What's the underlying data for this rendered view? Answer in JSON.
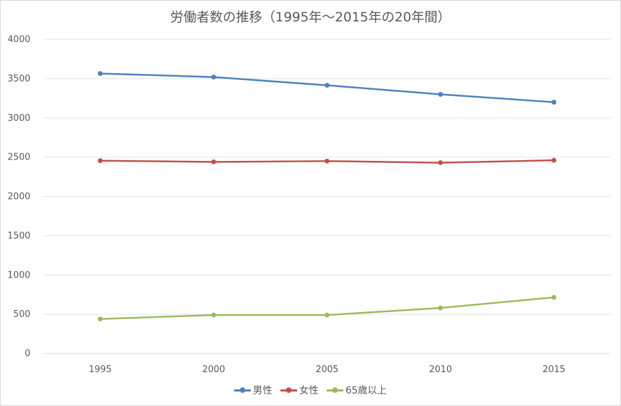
{
  "chart_data": {
    "type": "line",
    "title": "労働者数の推移（1995年～2015年の20年間）",
    "categories": [
      "1995",
      "2000",
      "2005",
      "2010",
      "2015"
    ],
    "ylim": [
      0,
      4000
    ],
    "yticks": [
      0,
      500,
      1000,
      1500,
      2000,
      2500,
      3000,
      3500,
      4000
    ],
    "grid": true,
    "legend_position": "bottom",
    "series": [
      {
        "name": "男性",
        "color": "#4f81bd",
        "values": [
          3565,
          3520,
          3415,
          3300,
          3200
        ]
      },
      {
        "name": "女性",
        "color": "#c0504d",
        "values": [
          2455,
          2440,
          2450,
          2430,
          2460
        ]
      },
      {
        "name": "65歳以上",
        "color": "#9bbb59",
        "values": [
          440,
          490,
          490,
          580,
          715
        ]
      }
    ]
  }
}
